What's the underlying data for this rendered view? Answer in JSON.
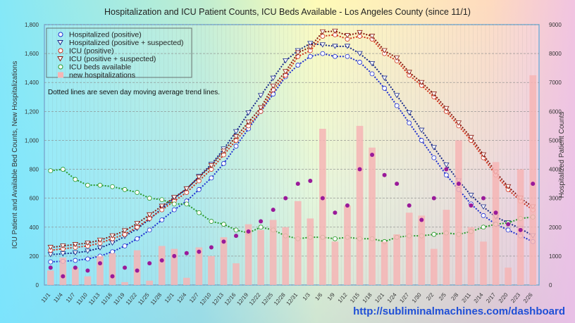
{
  "chart_data": {
    "type": "line",
    "title": "Hospitalization and ICU Patient Counts, ICU Beds Available - Los Angeles County (since 11/1)",
    "ylabel": "ICU Patient and Available Bed Counts, New Hospitalizations",
    "y2label": "Hospitalized Patient Counts",
    "ylim": [
      0,
      1800
    ],
    "y2lim": [
      0,
      9000
    ],
    "yticks": [
      "0",
      "200",
      "400",
      "600",
      "800",
      "1,000",
      "1,200",
      "1,400",
      "1,600",
      "1,800"
    ],
    "y2ticks": [
      "0",
      "1000",
      "2000",
      "3000",
      "4000",
      "5000",
      "6000",
      "7000",
      "8000",
      "9000"
    ],
    "x": [
      "11/1",
      "11/4",
      "11/7",
      "11/10",
      "11/13",
      "11/16",
      "11/19",
      "11/22",
      "11/25",
      "11/28",
      "12/1",
      "12/4",
      "12/7",
      "12/10",
      "12/13",
      "12/16",
      "12/19",
      "12/22",
      "12/25",
      "12/28",
      "12/31",
      "1/3",
      "1/6",
      "1/9",
      "1/12",
      "1/15",
      "1/18",
      "1/21",
      "1/24",
      "1/27",
      "1/30",
      "2/2",
      "2/5",
      "2/8",
      "2/11",
      "2/14",
      "2/17",
      "2/20",
      "2/23",
      "2/26"
    ],
    "note": "Dotted lines are seven day moving average trend lines.",
    "legend_position": "top-left",
    "grid": true,
    "series": [
      {
        "name": "Hospitalized (positive)",
        "axis": "right",
        "color": "#1f2fd0",
        "marker": "circle",
        "values": [
          800,
          820,
          850,
          900,
          1000,
          1150,
          1350,
          1600,
          1900,
          2250,
          2600,
          2900,
          3300,
          3700,
          4200,
          4800,
          5400,
          6000,
          6600,
          7200,
          7600,
          7900,
          8000,
          7900,
          7900,
          7700,
          7300,
          6800,
          6200,
          5600,
          5000,
          4400,
          3800,
          3300,
          2800,
          2400,
          2100,
          1900,
          1700,
          1500
        ]
      },
      {
        "name": "Hospitalized (positive + suspected)",
        "axis": "right",
        "color": "#1a2a8a",
        "marker": "triangle",
        "values": [
          1050,
          1080,
          1110,
          1170,
          1280,
          1450,
          1680,
          1950,
          2270,
          2650,
          3000,
          3320,
          3750,
          4170,
          4700,
          5300,
          5950,
          6550,
          7150,
          7750,
          8100,
          8350,
          8300,
          8250,
          8250,
          8000,
          7650,
          7150,
          6550,
          5950,
          5350,
          4750,
          4150,
          3600,
          3100,
          2700,
          2350,
          2150,
          1950,
          1700
        ]
      },
      {
        "name": "ICU (positive)",
        "axis": "left",
        "color": "#d0301a",
        "marker": "circle",
        "values": [
          240,
          250,
          260,
          270,
          290,
          320,
          350,
          400,
          460,
          520,
          580,
          640,
          720,
          800,
          900,
          1000,
          1100,
          1200,
          1350,
          1450,
          1580,
          1620,
          1720,
          1730,
          1700,
          1720,
          1700,
          1600,
          1550,
          1450,
          1380,
          1300,
          1200,
          1100,
          1000,
          880,
          760,
          660,
          580,
          520
        ]
      },
      {
        "name": "ICU (positive + suspected)",
        "axis": "left",
        "color": "#8a1a10",
        "marker": "triangle",
        "values": [
          260,
          270,
          280,
          290,
          310,
          340,
          375,
          425,
          485,
          545,
          605,
          665,
          745,
          825,
          925,
          1025,
          1125,
          1225,
          1375,
          1475,
          1605,
          1645,
          1750,
          1755,
          1725,
          1745,
          1720,
          1620,
          1570,
          1470,
          1400,
          1320,
          1220,
          1120,
          1020,
          900,
          780,
          680,
          600,
          540
        ]
      },
      {
        "name": "ICU beds available",
        "axis": "left",
        "color": "#2a9a2a",
        "marker": "circle",
        "values": [
          790,
          800,
          730,
          690,
          690,
          680,
          660,
          640,
          600,
          590,
          560,
          560,
          500,
          440,
          420,
          380,
          360,
          400,
          380,
          340,
          320,
          330,
          330,
          320,
          330,
          320,
          320,
          300,
          330,
          340,
          340,
          350,
          360,
          350,
          370,
          400,
          420,
          430,
          460,
          470
        ]
      },
      {
        "name": "new hospitalizations",
        "axis": "left",
        "color": "#f6b5b5",
        "type": "bar",
        "values": [
          100,
          190,
          120,
          60,
          200,
          220,
          20,
          240,
          30,
          270,
          250,
          50,
          260,
          200,
          330,
          150,
          420,
          380,
          450,
          400,
          580,
          460,
          1080,
          300,
          550,
          1100,
          950,
          300,
          350,
          500,
          480,
          250,
          520,
          1000,
          400,
          300,
          850,
          120,
          800,
          1450
        ]
      },
      {
        "axis": "left",
        "color": "#9a1a9a",
        "type": "scatter",
        "values": [
          120,
          60,
          120,
          100,
          150,
          60,
          120,
          100,
          150,
          170,
          200,
          220,
          230,
          260,
          300,
          340,
          370,
          440,
          520,
          600,
          700,
          720,
          600,
          500,
          550,
          800,
          900,
          760,
          700,
          550,
          450,
          600,
          800,
          700,
          550,
          600,
          500,
          420,
          380,
          700
        ]
      }
    ]
  },
  "url": "http://subliminalmachines.com/dashboard"
}
